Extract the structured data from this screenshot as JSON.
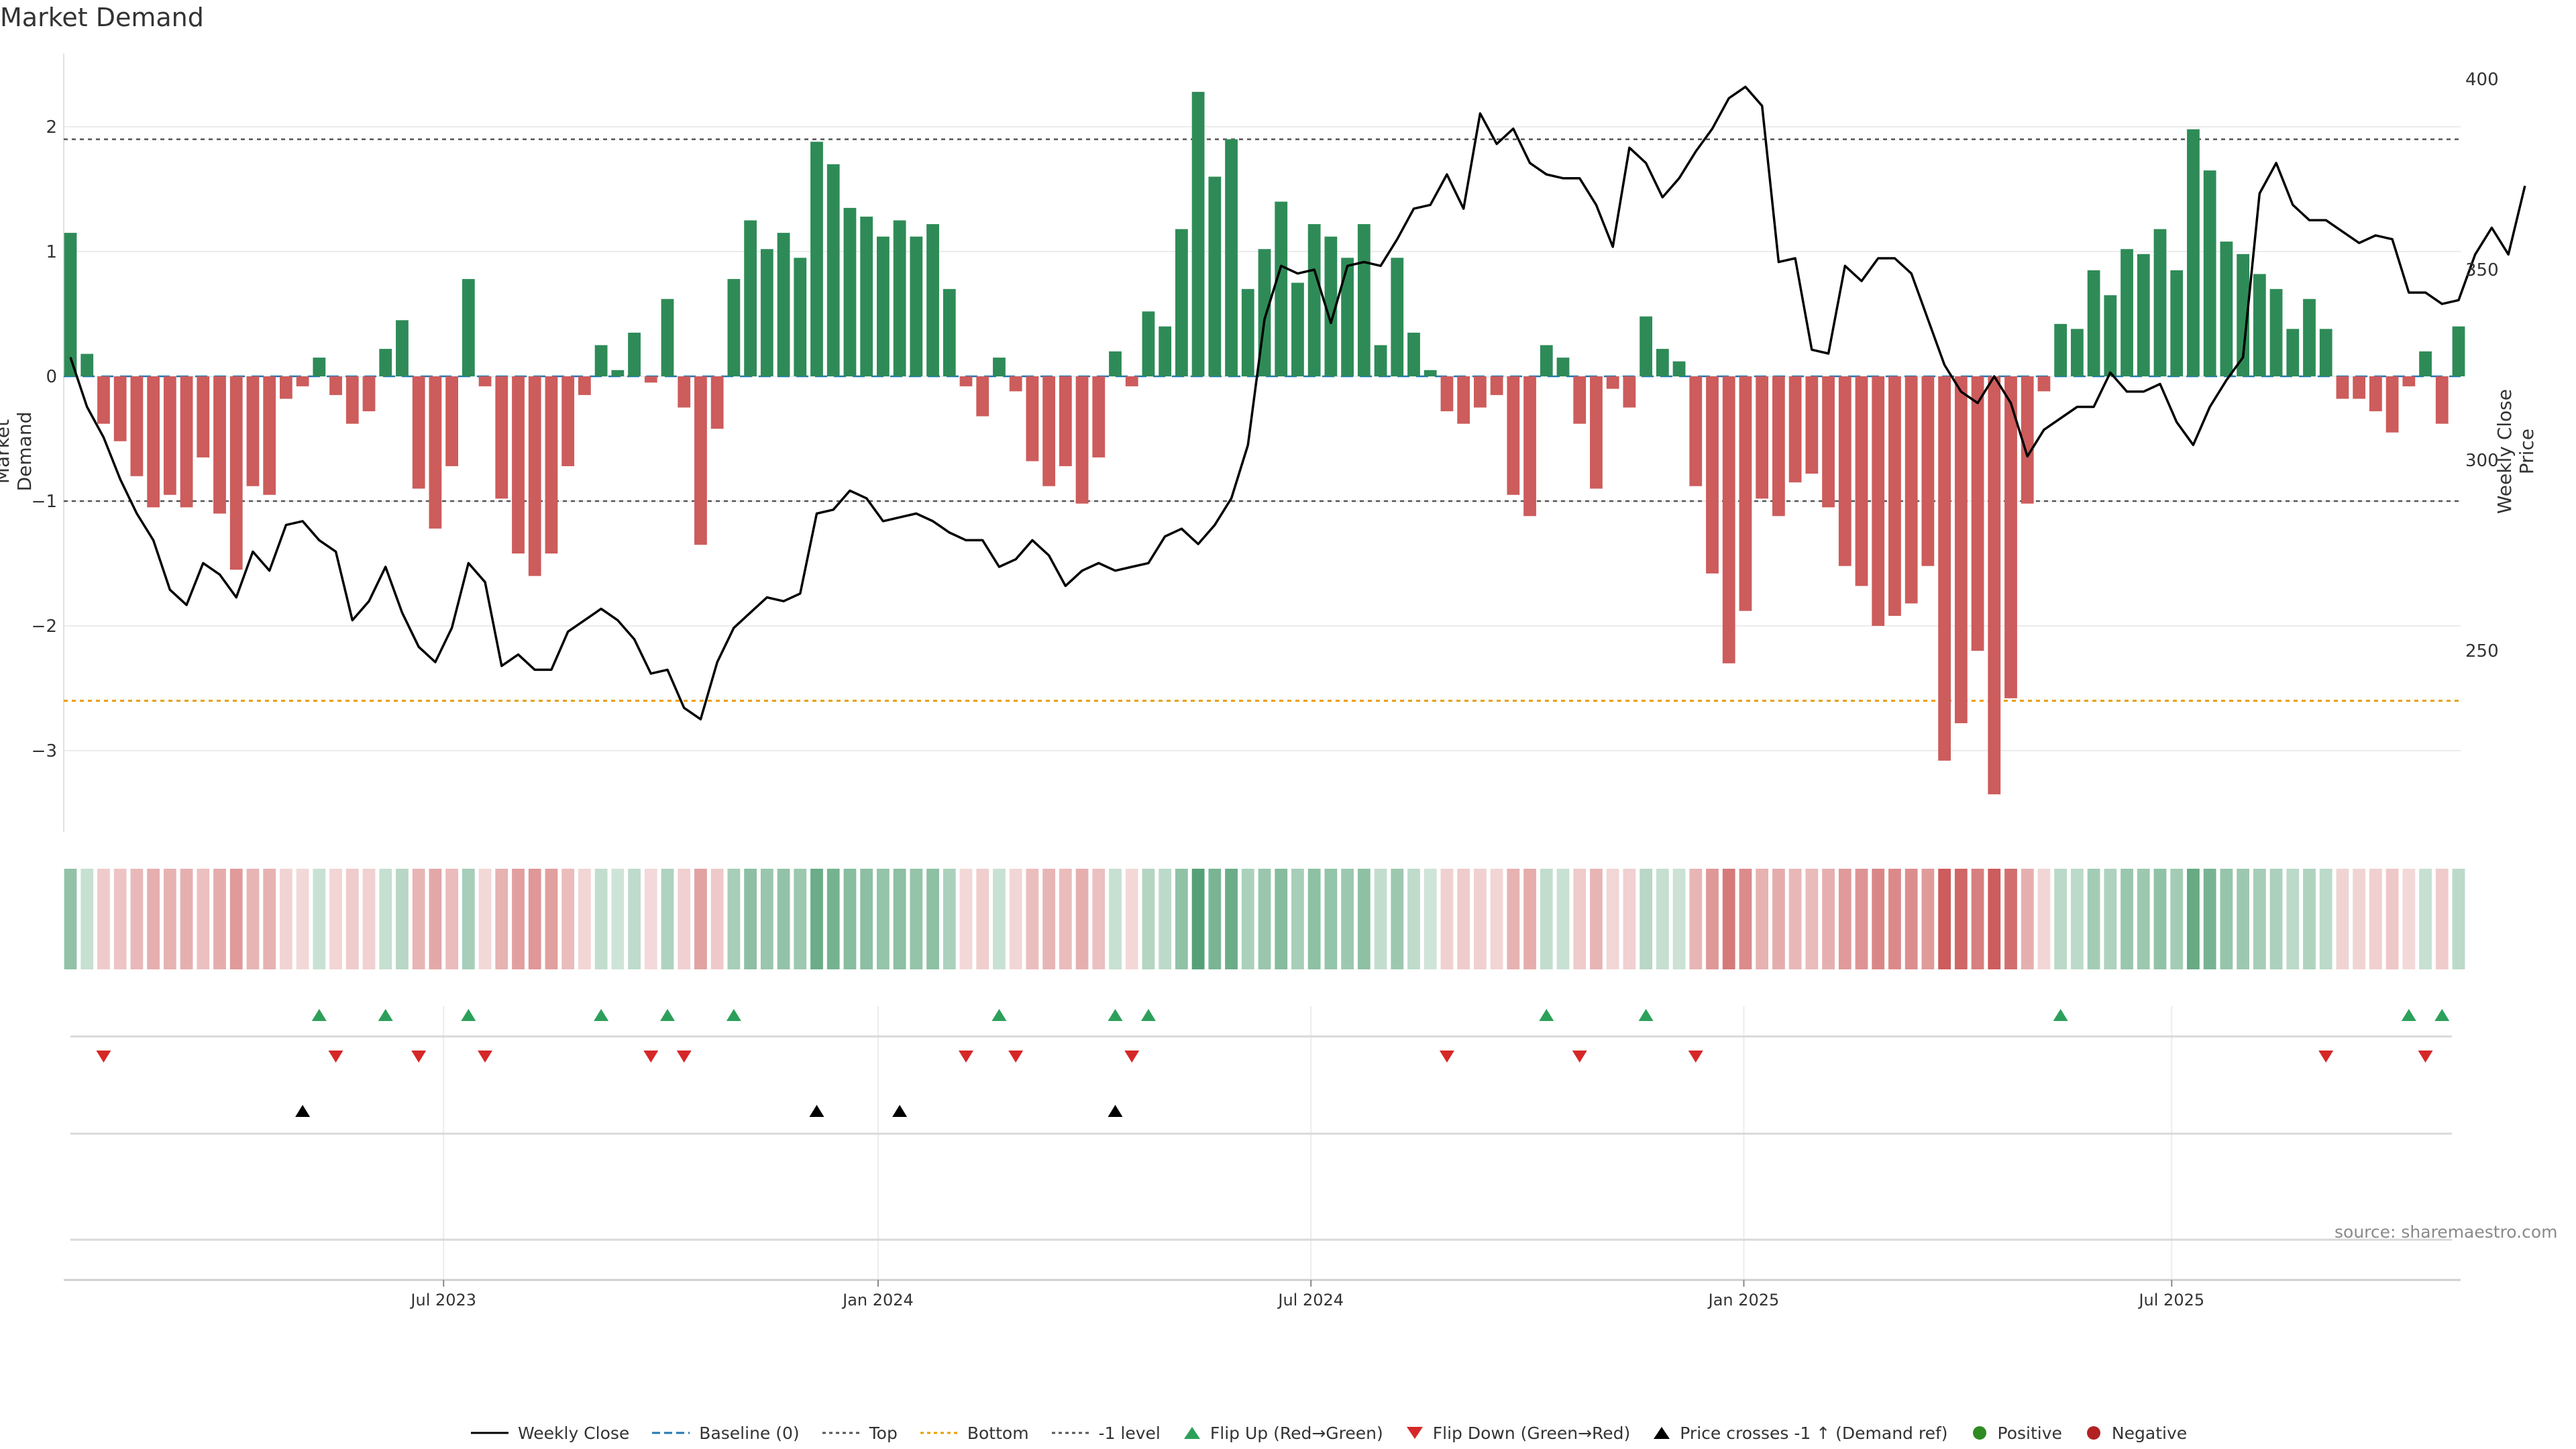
{
  "chart_data": {
    "type": "bar",
    "title": "Market Demand",
    "ylabel": "Market Demand",
    "y2label": "Weekly Close Price",
    "ylim": [
      -3.6,
      2.6
    ],
    "y2lim": [
      210,
      410
    ],
    "yticks": [
      "2",
      "1",
      "0",
      "−1",
      "−2",
      "−3"
    ],
    "y2ticks": [
      "400",
      "350",
      "300",
      "250"
    ],
    "reference_lines": {
      "top": 1.9,
      "bottom": -2.6,
      "minus_one": -1.0,
      "baseline": 0
    },
    "x_tick_labels": [
      "Jul 2023",
      "Jan 2024",
      "Jul 2024",
      "Jan 2025",
      "Jul 2025"
    ],
    "x_tick_weeks": [
      22.5,
      48.7,
      74.8,
      100.9,
      126.7
    ],
    "series": [
      {
        "name": "Market Demand",
        "values": [
          1.15,
          0.18,
          -0.38,
          -0.52,
          -0.8,
          -1.05,
          -0.95,
          -1.05,
          -0.65,
          -1.1,
          -1.55,
          -0.88,
          -0.95,
          -0.18,
          -0.08,
          0.15,
          -0.15,
          -0.38,
          -0.28,
          0.22,
          0.45,
          -0.9,
          -1.22,
          -0.72,
          0.78,
          -0.08,
          -0.98,
          -1.42,
          -1.6,
          -1.42,
          -0.72,
          -0.15,
          0.25,
          0.05,
          0.35,
          -0.05,
          0.62,
          -0.25,
          -1.35,
          -0.42,
          0.78,
          1.25,
          1.02,
          1.15,
          0.95,
          1.88,
          1.7,
          1.35,
          1.28,
          1.12,
          1.25,
          1.12,
          1.22,
          0.7,
          -0.08,
          -0.32,
          0.15,
          -0.12,
          -0.68,
          -0.88,
          -0.72,
          -1.02,
          -0.65,
          0.2,
          -0.08,
          0.52,
          0.4,
          1.18,
          2.28,
          1.6,
          1.9,
          0.7,
          1.02,
          1.4,
          0.75,
          1.22,
          1.12,
          0.95,
          1.22,
          0.25,
          0.95,
          0.35,
          0.05,
          -0.28,
          -0.38,
          -0.25,
          -0.15,
          -0.95,
          -1.12,
          0.25,
          0.15,
          -0.38,
          -0.9,
          -0.1,
          -0.25,
          0.48,
          0.22,
          0.12,
          -0.88,
          -1.58,
          -2.3,
          -1.88,
          -0.98,
          -1.12,
          -0.85,
          -0.78,
          -1.05,
          -1.52,
          -1.68,
          -2.0,
          -1.92,
          -1.82,
          -1.52,
          -3.08,
          -2.78,
          -2.2,
          -3.35,
          -2.58,
          -1.02,
          -0.12,
          0.42,
          0.38,
          0.85,
          0.65,
          1.02,
          0.98,
          1.18,
          0.85,
          1.98,
          1.65,
          1.08,
          0.98,
          0.82,
          0.7,
          0.38,
          0.62,
          0.38,
          -0.18,
          -0.18,
          -0.28,
          -0.45,
          -0.08,
          0.2,
          -0.38,
          0.4
        ]
      },
      {
        "name": "Weekly Close",
        "values": [
          327,
          314,
          306,
          295,
          286,
          279,
          266,
          262,
          273,
          270,
          264,
          276,
          271,
          283,
          284,
          279,
          276,
          258,
          263,
          272,
          260,
          251,
          247,
          256,
          273,
          268,
          246,
          249,
          245,
          245,
          255,
          258,
          261,
          258,
          253,
          244,
          245,
          235,
          232,
          247,
          256,
          260,
          264,
          263,
          265,
          286,
          287,
          292,
          290,
          284,
          285,
          286,
          284,
          281,
          279,
          279,
          272,
          274,
          279,
          275,
          267,
          271,
          273,
          271,
          272,
          273,
          280,
          282,
          278,
          283,
          290,
          304,
          337,
          351,
          349,
          350,
          336,
          351,
          352,
          351,
          358,
          366,
          367,
          375,
          366,
          391,
          383,
          387,
          378,
          375,
          374,
          374,
          367,
          356,
          382,
          378,
          369,
          374,
          381,
          387,
          395,
          398,
          393,
          352,
          353,
          329,
          328,
          351,
          347,
          353,
          353,
          349,
          337,
          325,
          318,
          315,
          322,
          315,
          301,
          308,
          311,
          314,
          314,
          323,
          318,
          318,
          320,
          310,
          304,
          314,
          321,
          327,
          370,
          378,
          367,
          363,
          363,
          360,
          357,
          359,
          358,
          344,
          344,
          341,
          342,
          354,
          361,
          354,
          372
        ]
      },
      {
        "name": "Flip Up (Red→Green)",
        "weeks": [
          15,
          19,
          24,
          32,
          36,
          40,
          56,
          63,
          65,
          89,
          95,
          120,
          141,
          143
        ]
      },
      {
        "name": "Flip Down (Green→Red)",
        "weeks": [
          2,
          16,
          21,
          25,
          35,
          37,
          54,
          57,
          64,
          83,
          91,
          98,
          136,
          142
        ]
      },
      {
        "name": "Price crosses -1 ↑ (Demand ref)",
        "weeks": [
          14,
          45,
          50,
          63
        ]
      }
    ],
    "legend": {
      "position": "bottom-center",
      "entries": [
        "Weekly Close",
        "Baseline (0)",
        "Top",
        "Bottom",
        "-1 level",
        "Flip Up (Red→Green)",
        "Flip Down (Green→Red)",
        "Price crosses -1 ↑ (Demand ref)",
        "Positive",
        "Negative"
      ]
    }
  },
  "labels": {
    "title": "Market Demand",
    "ylabel_left": "Market Demand",
    "ylabel_right": "Weekly Close Price",
    "source": "source: sharemaestro.com"
  },
  "colors": {
    "positive": "#2e8b57",
    "negative": "#cd5c5c",
    "price_line": "#000000",
    "baseline": "#1f77b4",
    "top_line": "#555555",
    "bottom_line": "#e69f00",
    "flip_up": "#2ca05a",
    "flip_down": "#d62728",
    "cross": "#000000",
    "legend_positive": "#2e8b22",
    "legend_negative": "#b22222"
  }
}
